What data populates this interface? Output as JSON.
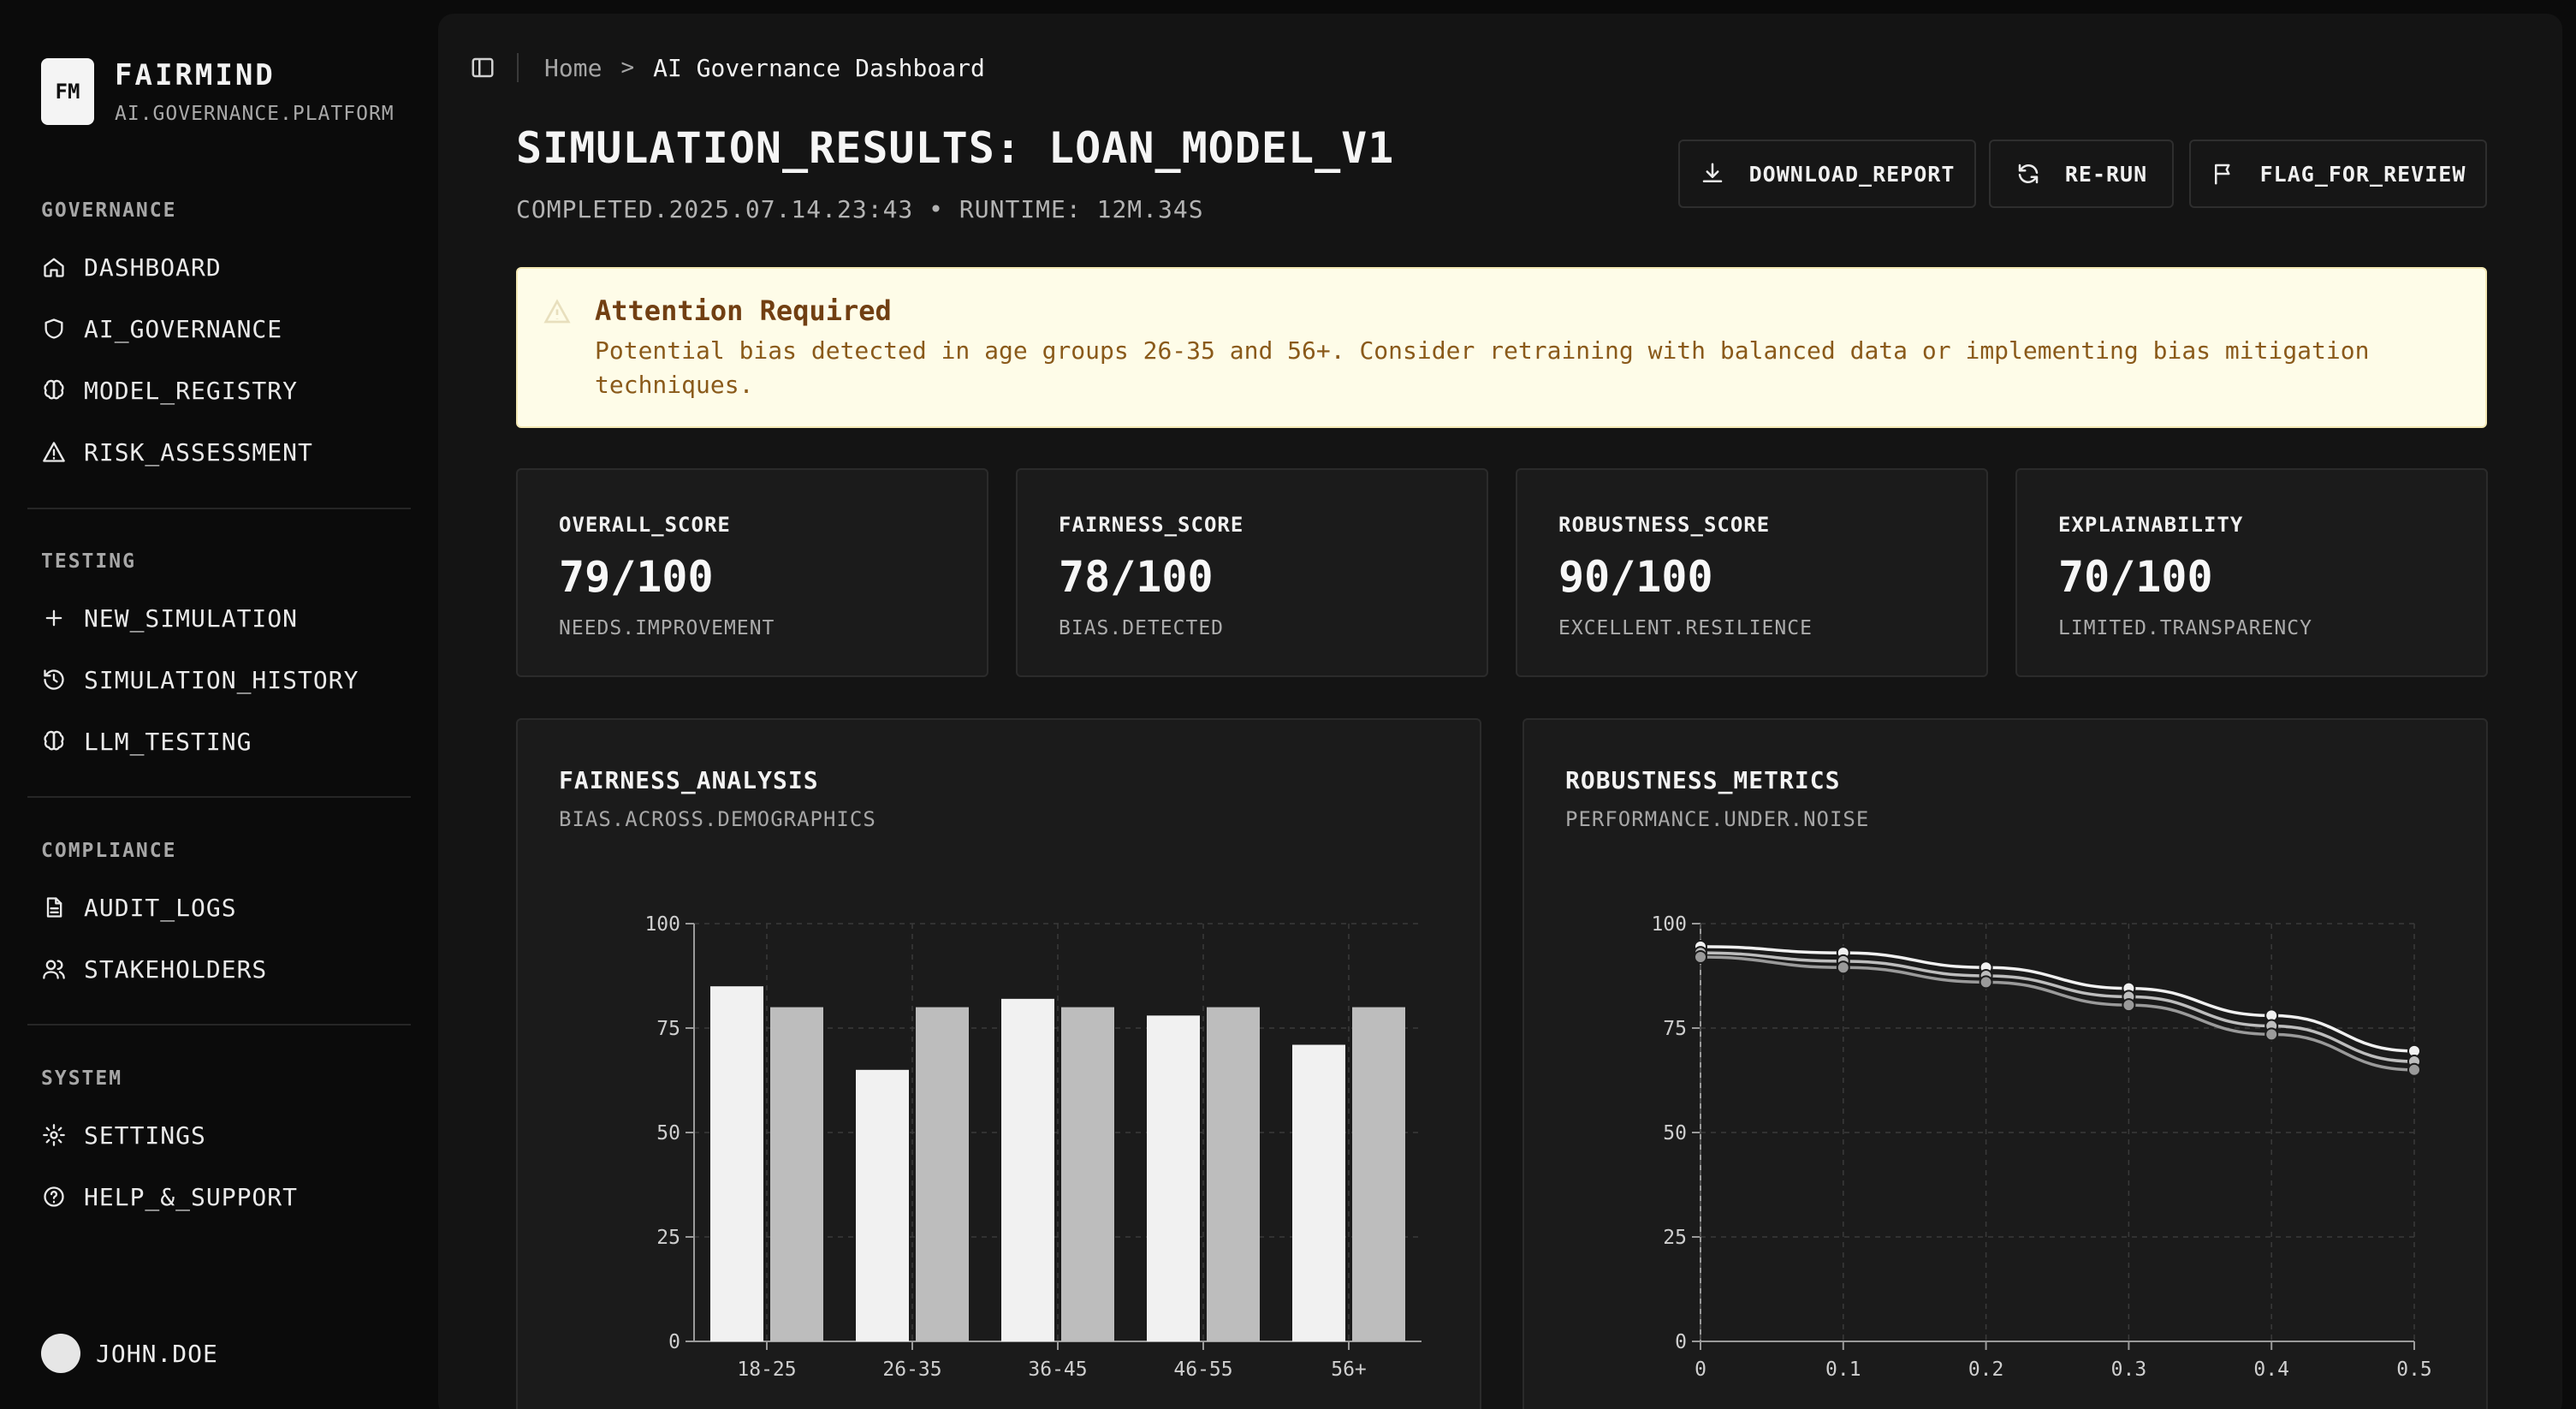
{
  "brand": {
    "logo": "FM",
    "name": "FAIRMIND",
    "subtitle": "AI.GOVERNANCE.PLATFORM"
  },
  "sidebar": {
    "groups": [
      {
        "label": "GOVERNANCE",
        "items": [
          {
            "label": "DASHBOARD",
            "icon": "home-icon"
          },
          {
            "label": "AI_GOVERNANCE",
            "icon": "shield-icon"
          },
          {
            "label": "MODEL_REGISTRY",
            "icon": "brain-icon"
          },
          {
            "label": "RISK_ASSESSMENT",
            "icon": "warning-icon"
          }
        ]
      },
      {
        "label": "TESTING",
        "items": [
          {
            "label": "NEW_SIMULATION",
            "icon": "plus-icon"
          },
          {
            "label": "SIMULATION_HISTORY",
            "icon": "history-icon"
          },
          {
            "label": "LLM_TESTING",
            "icon": "brain-icon"
          }
        ]
      },
      {
        "label": "COMPLIANCE",
        "items": [
          {
            "label": "AUDIT_LOGS",
            "icon": "document-icon"
          },
          {
            "label": "STAKEHOLDERS",
            "icon": "users-icon"
          }
        ]
      },
      {
        "label": "SYSTEM",
        "items": [
          {
            "label": "SETTINGS",
            "icon": "gear-icon"
          },
          {
            "label": "HELP_&_SUPPORT",
            "icon": "help-icon"
          }
        ]
      }
    ]
  },
  "user": {
    "name": "JOHN.DOE"
  },
  "breadcrumb": {
    "home": "Home",
    "separator": ">",
    "current": "AI Governance Dashboard"
  },
  "page": {
    "title": "SIMULATION_RESULTS: LOAN_MODEL_V1",
    "subtitle": "COMPLETED.2025.07.14.23:43 • RUNTIME: 12M.34S"
  },
  "actions": {
    "download": "DOWNLOAD_REPORT",
    "rerun": "RE-RUN",
    "flag": "FLAG_FOR_REVIEW"
  },
  "alert": {
    "title": "Attention Required",
    "body": "Potential bias detected in age groups 26-35 and 56+. Consider retraining with balanced data or implementing bias mitigation techniques."
  },
  "metrics": [
    {
      "label": "OVERALL_SCORE",
      "value": "79/100",
      "note": "NEEDS.IMPROVEMENT"
    },
    {
      "label": "FAIRNESS_SCORE",
      "value": "78/100",
      "note": "BIAS.DETECTED"
    },
    {
      "label": "ROBUSTNESS_SCORE",
      "value": "90/100",
      "note": "EXCELLENT.RESILIENCE"
    },
    {
      "label": "EXPLAINABILITY",
      "value": "70/100",
      "note": "LIMITED.TRANSPARENCY"
    }
  ],
  "charts": {
    "fairness": {
      "title": "FAIRNESS_ANALYSIS",
      "subtitle": "BIAS.ACROSS.DEMOGRAPHICS"
    },
    "robustness": {
      "title": "ROBUSTNESS_METRICS",
      "subtitle": "PERFORMANCE.UNDER.NOISE"
    }
  },
  "colors": {
    "series_light": "#f1f1f1",
    "series_mid": "#bdbdbd",
    "series_dark": "#9a9a9a",
    "alert_bg": "#fefce8",
    "alert_title": "#713f12"
  },
  "chart_data": [
    {
      "type": "bar",
      "categories": [
        "18-25",
        "26-35",
        "36-45",
        "46-55",
        "56+"
      ],
      "series": [
        {
          "values": [
            85,
            65,
            82,
            78,
            71
          ]
        },
        {
          "values": [
            80,
            80,
            80,
            80,
            80
          ]
        }
      ],
      "ylim": [
        0,
        100
      ],
      "yticks": [
        0,
        25,
        50,
        75,
        100
      ],
      "grid": true
    },
    {
      "type": "line",
      "x": [
        0,
        0.1,
        0.2,
        0.3,
        0.4,
        0.5
      ],
      "xticks": [
        "0",
        "0.1",
        "0.2",
        "0.3",
        "0.4",
        "0.5"
      ],
      "series": [
        {
          "values": [
            94.5,
            93,
            89.5,
            84.5,
            78,
            69.5
          ]
        },
        {
          "values": [
            93,
            91,
            87.5,
            82.5,
            75.5,
            67
          ]
        },
        {
          "values": [
            92,
            89.5,
            86,
            80.5,
            73.5,
            65
          ]
        }
      ],
      "ylim": [
        0,
        100
      ],
      "yticks": [
        0,
        25,
        50,
        75,
        100
      ],
      "grid": true
    }
  ]
}
